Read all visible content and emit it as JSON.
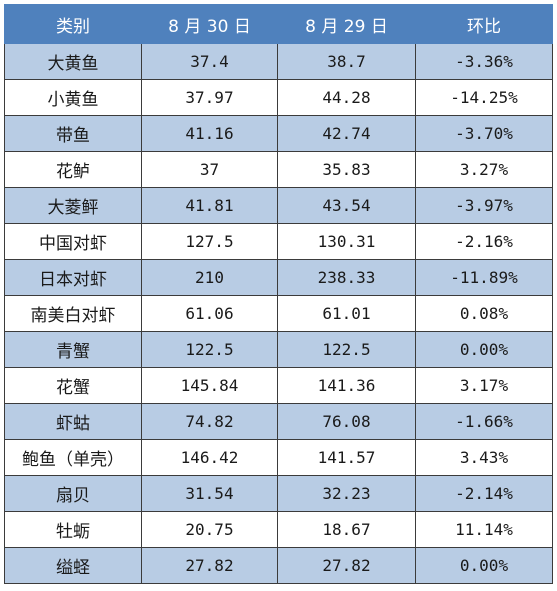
{
  "table": {
    "headers": [
      "类别",
      "8 月 30 日",
      "8 月 29 日",
      "环比"
    ],
    "rows": [
      [
        "大黄鱼",
        "37.4",
        "38.7",
        "-3.36%"
      ],
      [
        "小黄鱼",
        "37.97",
        "44.28",
        "-14.25%"
      ],
      [
        "带鱼",
        "41.16",
        "42.74",
        "-3.70%"
      ],
      [
        "花鲈",
        "37",
        "35.83",
        "3.27%"
      ],
      [
        "大菱鲆",
        "41.81",
        "43.54",
        "-3.97%"
      ],
      [
        "中国对虾",
        "127.5",
        "130.31",
        "-2.16%"
      ],
      [
        "日本对虾",
        "210",
        "238.33",
        "-11.89%"
      ],
      [
        "南美白对虾",
        "61.06",
        "61.01",
        "0.08%"
      ],
      [
        "青蟹",
        "122.5",
        "122.5",
        "0.00%"
      ],
      [
        "花蟹",
        "145.84",
        "141.36",
        "3.17%"
      ],
      [
        "虾蛄",
        "74.82",
        "76.08",
        "-1.66%"
      ],
      [
        "鲍鱼（单壳）",
        "146.42",
        "141.57",
        "3.43%"
      ],
      [
        "扇贝",
        "31.54",
        "32.23",
        "-2.14%"
      ],
      [
        "牡蛎",
        "20.75",
        "18.67",
        "11.14%"
      ],
      [
        "缢蛏",
        "27.82",
        "27.82",
        "0.00%"
      ]
    ]
  },
  "colors": {
    "header_bg": "#4f81bd",
    "header_text": "#ffffff",
    "band_bg": "#b8cce4",
    "row_bg": "#ffffff"
  }
}
